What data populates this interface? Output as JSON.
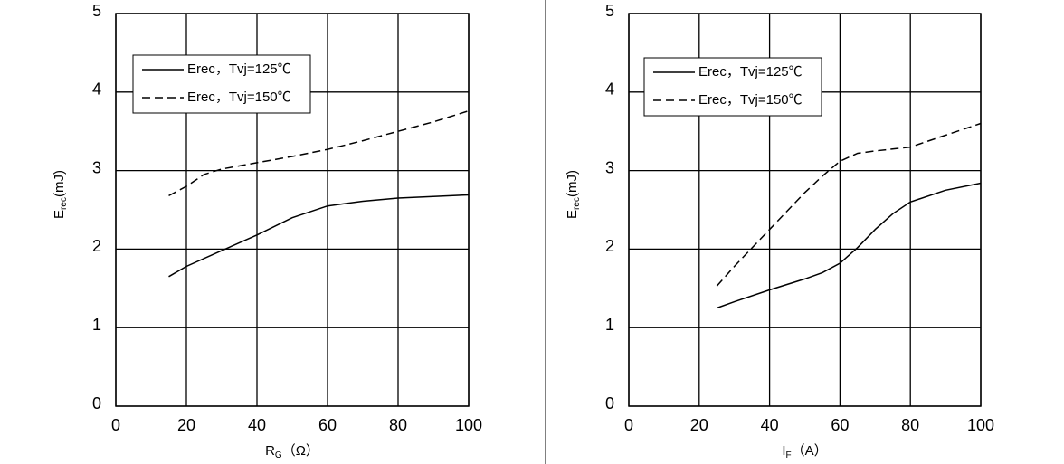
{
  "chart_data": [
    {
      "type": "line",
      "xlabel_parts": [
        "R",
        "G",
        "（Ω）"
      ],
      "ylabel_parts": [
        "E",
        "rec",
        "(mJ)"
      ],
      "xlim": [
        0,
        100
      ],
      "ylim": [
        0,
        5
      ],
      "xticks": [
        0,
        20,
        40,
        60,
        80,
        100
      ],
      "yticks": [
        0,
        1,
        2,
        3,
        4,
        5
      ],
      "grid": true,
      "legend": "upper left",
      "series": [
        {
          "name": "Erec，Tvj=125℃",
          "color": "#000000",
          "linestyle": "solid",
          "x": [
            15,
            20,
            30,
            40,
            50,
            60,
            70,
            80,
            90,
            100
          ],
          "values": [
            1.65,
            1.78,
            1.98,
            2.18,
            2.4,
            2.55,
            2.61,
            2.65,
            2.67,
            2.69
          ]
        },
        {
          "name": "Erec，Tvj=150℃",
          "color": "#000000",
          "linestyle": "dashed",
          "x": [
            15,
            20,
            25,
            30,
            40,
            50,
            60,
            70,
            80,
            90,
            100
          ],
          "values": [
            2.68,
            2.8,
            2.95,
            3.02,
            3.1,
            3.18,
            3.27,
            3.38,
            3.5,
            3.62,
            3.76
          ]
        }
      ]
    },
    {
      "type": "line",
      "xlabel_parts": [
        "I",
        "F",
        "（A）"
      ],
      "ylabel_parts": [
        "E",
        "rec",
        "(mJ)"
      ],
      "xlim": [
        0,
        100
      ],
      "ylim": [
        0,
        5
      ],
      "xticks": [
        0,
        20,
        40,
        60,
        80,
        100
      ],
      "yticks": [
        0,
        1,
        2,
        3,
        4,
        5
      ],
      "grid": true,
      "legend": "upper left",
      "series": [
        {
          "name": "Erec，Tvj=125℃",
          "color": "#000000",
          "linestyle": "solid",
          "x": [
            25,
            30,
            40,
            50,
            55,
            60,
            65,
            70,
            75,
            80,
            90,
            100
          ],
          "values": [
            1.25,
            1.33,
            1.48,
            1.62,
            1.7,
            1.82,
            2.02,
            2.25,
            2.45,
            2.6,
            2.75,
            2.84
          ]
        },
        {
          "name": "Erec，Tvj=150℃",
          "color": "#000000",
          "linestyle": "dashed",
          "x": [
            25,
            30,
            40,
            50,
            55,
            60,
            65,
            70,
            80,
            90,
            100
          ],
          "values": [
            1.53,
            1.78,
            2.25,
            2.72,
            2.93,
            3.12,
            3.22,
            3.25,
            3.3,
            3.45,
            3.6
          ]
        }
      ]
    }
  ]
}
